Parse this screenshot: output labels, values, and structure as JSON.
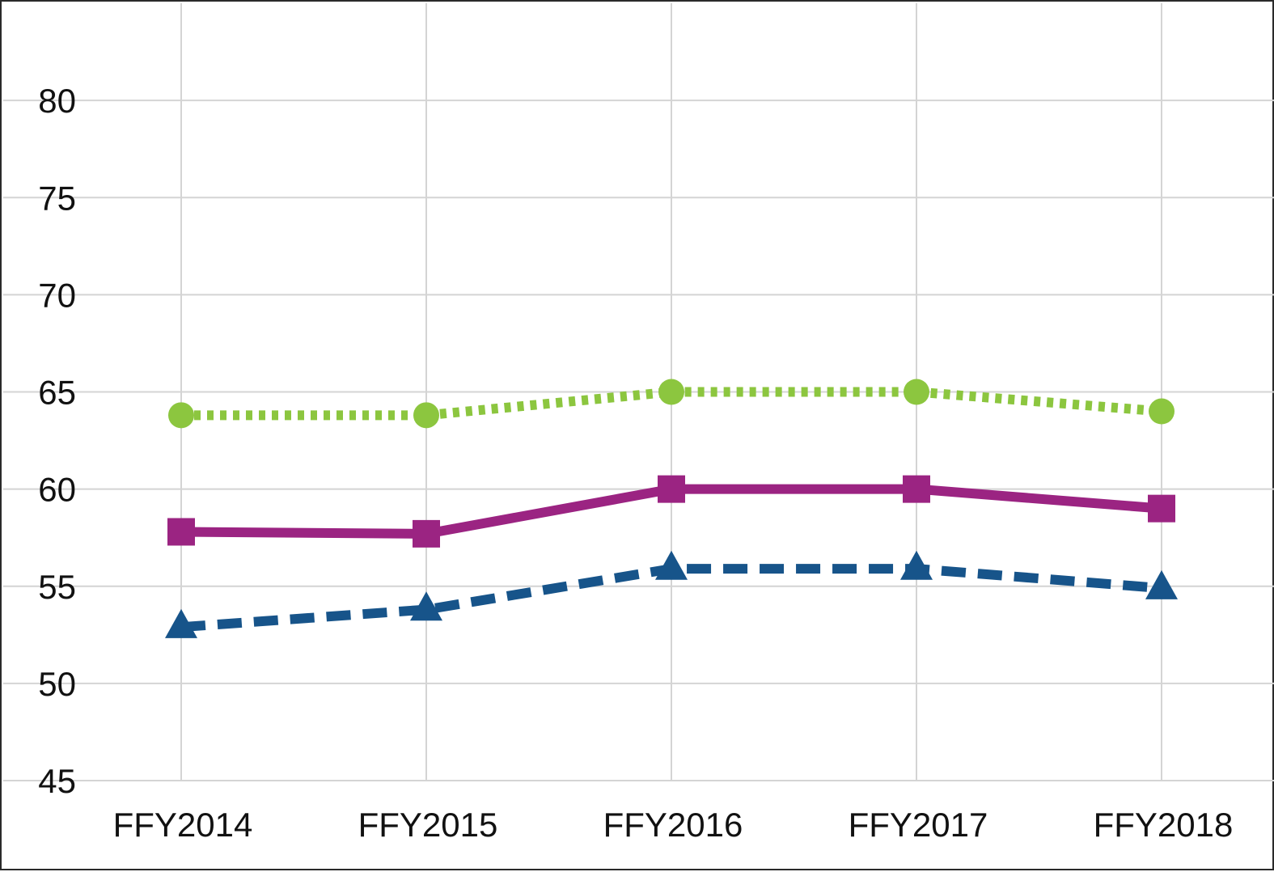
{
  "chart_data": {
    "type": "line",
    "title": "",
    "xlabel": "",
    "ylabel": "",
    "categories": [
      "FFY2014",
      "FFY2015",
      "FFY2016",
      "FFY2017",
      "FFY2018"
    ],
    "ylim": [
      45,
      85
    ],
    "yticks": [
      "45",
      "50",
      "55",
      "60",
      "65",
      "70",
      "75",
      "80"
    ],
    "grid": true,
    "legend": "none",
    "series": [
      {
        "values": [
          63.8,
          63.8,
          65.0,
          65.0,
          64.0
        ],
        "color": "#8cc63f",
        "line_style": "dotted",
        "marker": "circle"
      },
      {
        "values": [
          57.8,
          57.7,
          60.0,
          60.0,
          59.0
        ],
        "color": "#9b2482",
        "line_style": "solid",
        "marker": "square"
      },
      {
        "values": [
          52.9,
          53.8,
          55.9,
          55.9,
          54.9
        ],
        "color": "#17548a",
        "line_style": "dashed",
        "marker": "triangle"
      }
    ]
  }
}
